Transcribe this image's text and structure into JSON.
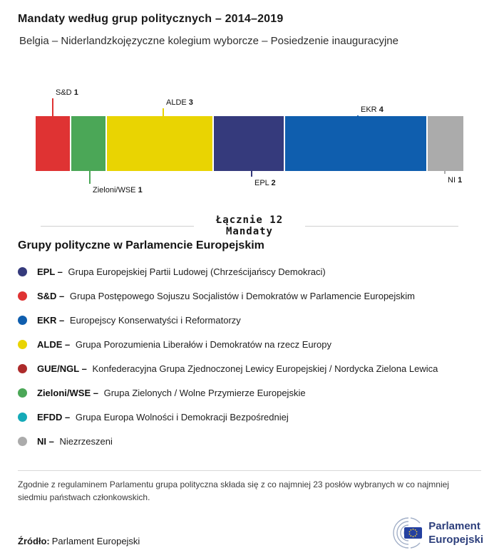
{
  "header": {
    "title": "Mandaty według grup politycznych – 2014–2019",
    "subtitle": "Belgia – Niderlandzkojęzyczne kolegium wyborcze – Posiedzenie inauguracyjne"
  },
  "chart_data": {
    "type": "bar",
    "orientation": "horizontal-stacked",
    "title": "Mandaty według grup politycznych – 2014–2019",
    "total": 12,
    "total_label": "Łącznie 12",
    "total_sublabel": "Mandaty",
    "segments": [
      {
        "group": "S&D",
        "seats": 1,
        "color": "#df3333"
      },
      {
        "group": "Zieloni/WSE",
        "seats": 1,
        "color": "#4ba757"
      },
      {
        "group": "ALDE",
        "seats": 3,
        "color": "#e9d402"
      },
      {
        "group": "EPL",
        "seats": 2,
        "color": "#353a7c"
      },
      {
        "group": "EKR",
        "seats": 4,
        "color": "#0f5eae"
      },
      {
        "group": "NI",
        "seats": 1,
        "color": "#ababab"
      }
    ]
  },
  "legend": {
    "heading": "Grupy polityczne w Parlamencie Europejskim",
    "items": [
      {
        "abbr": "EPL –",
        "desc": "Grupa Europejskiej Partii Ludowej (Chrześcijańscy Demokraci)",
        "color": "#353a7c"
      },
      {
        "abbr": "S&D –",
        "desc": "Grupa Postępowego Sojuszu Socjalistów i Demokratów w Parlamencie Europejskim",
        "color": "#df3333"
      },
      {
        "abbr": "EKR –",
        "desc": "Europejscy Konserwatyści i Reformatorzy",
        "color": "#0f5eae"
      },
      {
        "abbr": "ALDE –",
        "desc": "Grupa Porozumienia Liberałów i Demokratów na rzecz Europy",
        "color": "#e9d402"
      },
      {
        "abbr": "GUE/NGL –",
        "desc": "Konfederacyjna Grupa Zjednoczonej Lewicy Europejskiej / Nordycka Zielona Lewica",
        "color": "#ad2b2b"
      },
      {
        "abbr": "Zieloni/WSE –",
        "desc": "Grupa Zielonych / Wolne Przymierze Europejskie",
        "color": "#4ba757"
      },
      {
        "abbr": "EFDD –",
        "desc": "Grupa Europa Wolności i Demokracji Bezpośredniej",
        "color": "#15aab8"
      },
      {
        "abbr": "NI –",
        "desc": "Niezrzeszeni",
        "color": "#ababab"
      }
    ]
  },
  "footnote": "Zgodnie z regulaminem Parlamentu grupa polityczna składa się z co najmniej 23 posłów wybranych w co najmniej siedmiu państwach członkowskich.",
  "source": {
    "label": "Źródło:",
    "value": "Parlament Europejski"
  },
  "logo": {
    "line1": "Parlament",
    "line2": "Europejski"
  }
}
